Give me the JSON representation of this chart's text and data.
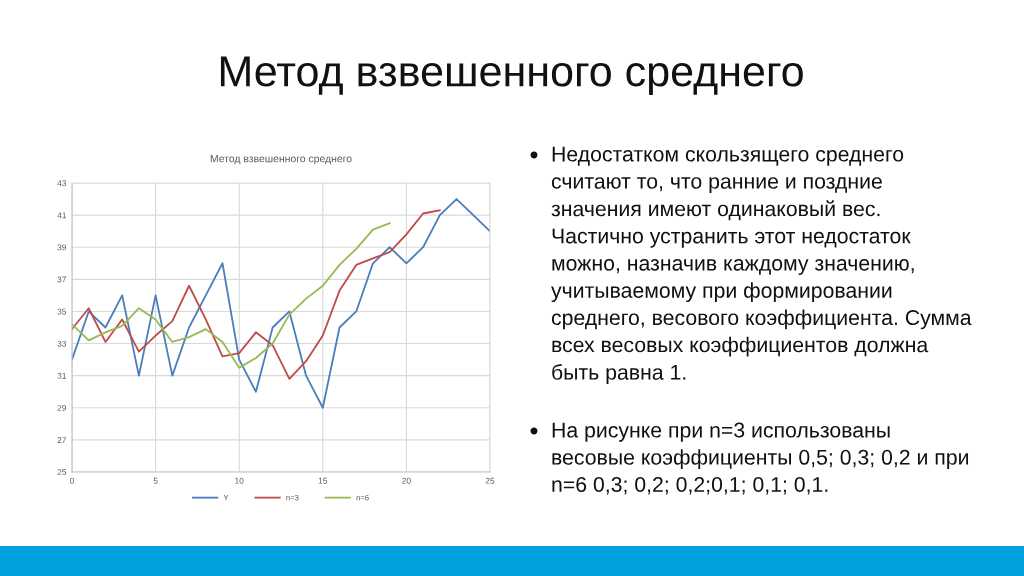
{
  "chart_data": {
    "type": "line",
    "title": "Метод взвешенного среднего",
    "x": [
      0,
      1,
      2,
      3,
      4,
      5,
      6,
      7,
      8,
      9,
      10,
      11,
      12,
      13,
      14,
      15,
      16,
      17,
      18,
      19,
      20,
      21,
      22,
      23,
      24,
      25
    ],
    "series": [
      {
        "name": "Y",
        "color": "#4a7ebb",
        "values": [
          32,
          35,
          34,
          36,
          31,
          36,
          31,
          34,
          36,
          38,
          32,
          30,
          34,
          35,
          31,
          29,
          34,
          35,
          38,
          39,
          38,
          39,
          41,
          42,
          41,
          40
        ]
      },
      {
        "name": "n=3",
        "color": "#be4b48",
        "x": [
          0,
          1,
          2,
          3,
          4,
          5,
          6,
          7,
          8,
          9,
          10,
          11,
          12,
          13,
          14,
          15,
          16,
          17,
          18,
          19,
          20,
          21,
          22
        ],
        "values": [
          33.9,
          35.2,
          33.1,
          34.5,
          32.5,
          33.5,
          34.4,
          36.6,
          34.5,
          32.2,
          32.4,
          33.7,
          32.9,
          30.8,
          31.9,
          33.5,
          36.3,
          37.9,
          38.3,
          38.7,
          39.8,
          41.1,
          41.3
        ]
      },
      {
        "name": "n=6",
        "color": "#98b954",
        "x": [
          0,
          1,
          2,
          3,
          4,
          5,
          6,
          7,
          8,
          9,
          10,
          11,
          12,
          13,
          14,
          15,
          16,
          17,
          18,
          19
        ],
        "values": [
          34.2,
          33.2,
          33.7,
          34.1,
          35.2,
          34.5,
          33.1,
          33.4,
          33.9,
          33.1,
          31.5,
          32.1,
          33.0,
          34.8,
          35.8,
          36.6,
          37.9,
          38.9,
          40.1,
          40.5
        ]
      }
    ],
    "xlim": [
      0,
      25
    ],
    "xticks": [
      0,
      5,
      10,
      15,
      20,
      25
    ],
    "ylim": [
      25,
      43
    ],
    "yticks": [
      25,
      27,
      29,
      31,
      33,
      35,
      37,
      39,
      41,
      43
    ],
    "grid": true,
    "legend": "bottom",
    "line_style": "solid",
    "annotations": [
      "Метод взвешенного среднего",
      "Недостатком скользящего среднего\nсчитают то, что ранние и поздние\nзначения имеют одинаковый вес.\nЧастично устранить этот недостаток\nможно, назначив каждому значению,\nучитываемому при формировании\nсреднего, весового коэффициента. Сумма\nвсех весовых коэффициентов должна\nбыть равна 1.",
      "На рисунке при n=3 использованы\nвесовые коэффициенты 0,5; 0,3; 0,2 и при\nn=6 0,3; 0,2; 0,2;0,1; 0,1; 0,1."
    ]
  }
}
